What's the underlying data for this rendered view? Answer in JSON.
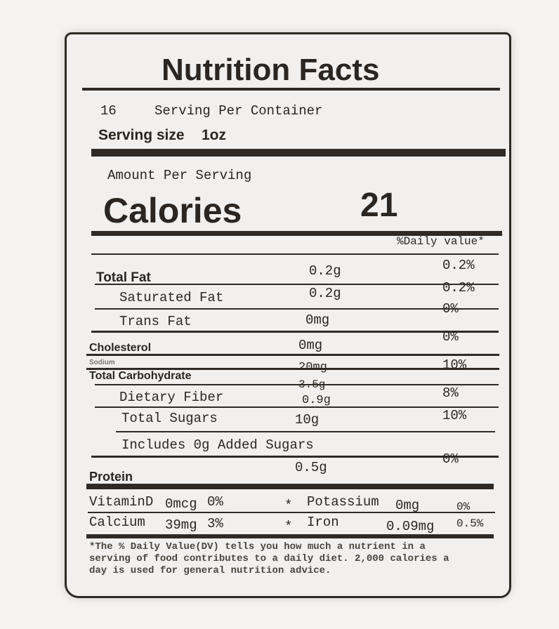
{
  "title": "Nutrition Facts",
  "servings_per_container": "16",
  "servings_label": "Serving Per Container",
  "serving_size_label": "Serving size",
  "serving_size": "1oz",
  "amount_per_serving": "Amount Per Serving",
  "calories_label": "Calories",
  "calories": "21",
  "daily_value_header": "%Daily value*",
  "nutrients": [
    {
      "name": "Total Fat",
      "amount": "0.2g",
      "dv": "0.2%"
    },
    {
      "name": "Saturated Fat",
      "amount": "0.2g",
      "dv": "0.2%"
    },
    {
      "name": "Trans Fat",
      "amount": "0mg",
      "dv": "0%"
    },
    {
      "name": "Cholesterol",
      "amount": "0mg",
      "dv": "0%"
    },
    {
      "name": "Sodium",
      "amount": "20mg",
      "dv": "10%"
    },
    {
      "name": "Total Carbohydrate",
      "amount": "3.5g",
      "dv": "8%"
    },
    {
      "name": "Dietary Fiber",
      "amount": "0.9g",
      "dv": "10%"
    },
    {
      "name": "Total Sugars",
      "amount": "10g",
      "dv": ""
    },
    {
      "name": "Includes 0g Added Sugars",
      "amount": "",
      "dv": "0%"
    },
    {
      "name": "Protein",
      "amount": "0.5g",
      "dv": ""
    }
  ],
  "minerals": [
    {
      "name": "VitaminD",
      "amount": "0mcg",
      "dv": "0%"
    },
    {
      "name": "Potassium",
      "amount": "0mg",
      "dv": "0%"
    },
    {
      "name": "Calcium",
      "amount": "39mg",
      "dv": "3%"
    },
    {
      "name": "Iron",
      "amount": "0.09mg",
      "dv": "0.5%"
    }
  ],
  "star": "*",
  "footnote": "*The % Daily Value(DV) tells you how much a nutrient in a serving of food contributes to a daily diet. 2,000 calories a day is used for general nutrition advice."
}
